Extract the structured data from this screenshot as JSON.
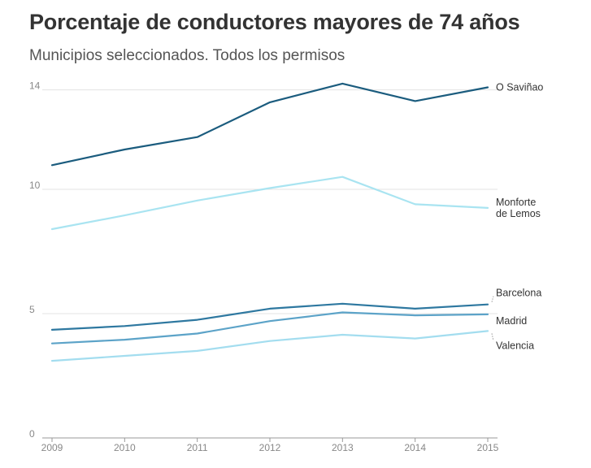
{
  "title": "Porcentaje de conductores mayores de 74 años",
  "subtitle": "Municipios seleccionados. Todos los permisos",
  "colors": {
    "background": "#ffffff",
    "text": "#333333",
    "grid": "#e3e3e3",
    "axis": "#999999",
    "tick_label": "#888888"
  },
  "chart_data": {
    "type": "line",
    "title": "Porcentaje de conductores mayores de 74 años",
    "subtitle": "Municipios seleccionados. Todos los permisos",
    "xlabel": "",
    "ylabel": "",
    "x": [
      "2009",
      "2010",
      "2011",
      "2012",
      "2013",
      "2014",
      "2015"
    ],
    "ylim": [
      0,
      14.5
    ],
    "yticks": [
      0,
      5,
      10,
      14
    ],
    "grid": "horizontal",
    "legend": "line-end labels",
    "series": [
      {
        "name": "O Saviñao",
        "label_lines": [
          "O Saviñao"
        ],
        "color": "#1b5c7e",
        "values": [
          10.97,
          11.6,
          12.1,
          13.5,
          14.25,
          13.55,
          14.1
        ]
      },
      {
        "name": "Monforte de Lemos",
        "label_lines": [
          "Monforte",
          "de Lemos"
        ],
        "color": "#a9e4f1",
        "values": [
          8.4,
          8.95,
          9.55,
          10.05,
          10.5,
          9.4,
          9.25
        ]
      },
      {
        "name": "Barcelona",
        "label_lines": [
          "Barcelona"
        ],
        "color": "#2e78a0",
        "values": [
          4.35,
          4.5,
          4.75,
          5.2,
          5.4,
          5.2,
          5.37
        ]
      },
      {
        "name": "Madrid",
        "label_lines": [
          "Madrid"
        ],
        "color": "#5ca3c8",
        "values": [
          3.8,
          3.95,
          4.2,
          4.7,
          5.05,
          4.93,
          4.97
        ]
      },
      {
        "name": "Valencia",
        "label_lines": [
          "Valencia"
        ],
        "color": "#a3ddef",
        "values": [
          3.1,
          3.3,
          3.5,
          3.9,
          4.15,
          4.0,
          4.3
        ]
      }
    ]
  }
}
